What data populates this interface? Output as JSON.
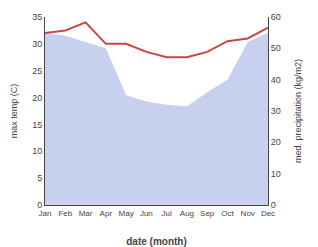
{
  "chart_data": {
    "type": "line",
    "xlabel": "date (month)",
    "ylabel": "max temp (C)",
    "y2label": "med. precipitation (kg/m2)",
    "categories": [
      "Jan",
      "Feb",
      "Mar",
      "Apr",
      "May",
      "Jun",
      "Jul",
      "Aug",
      "Sep",
      "Oct",
      "Nov",
      "Dec"
    ],
    "series": [
      {
        "type": "area",
        "axis": "y2",
        "color": "#c8d0f0",
        "values": [
          55.0,
          54.0,
          52.0,
          50.0,
          35.0,
          33.0,
          32.0,
          31.5,
          36.0,
          40.0,
          52.0,
          55.0
        ]
      },
      {
        "type": "line",
        "color": "#cc4444",
        "values": [
          32.0,
          32.5,
          34.0,
          30.0,
          30.0,
          28.5,
          27.5,
          27.5,
          28.5,
          30.5,
          31.0,
          33.0
        ]
      }
    ],
    "ylim": [
      0,
      35
    ],
    "yticks": [
      0,
      5,
      10,
      15,
      20,
      25,
      30,
      35
    ],
    "y2lim": [
      0,
      60
    ],
    "y2ticks": [
      0,
      10,
      20,
      30,
      40,
      50,
      60
    ],
    "grid": false
  }
}
